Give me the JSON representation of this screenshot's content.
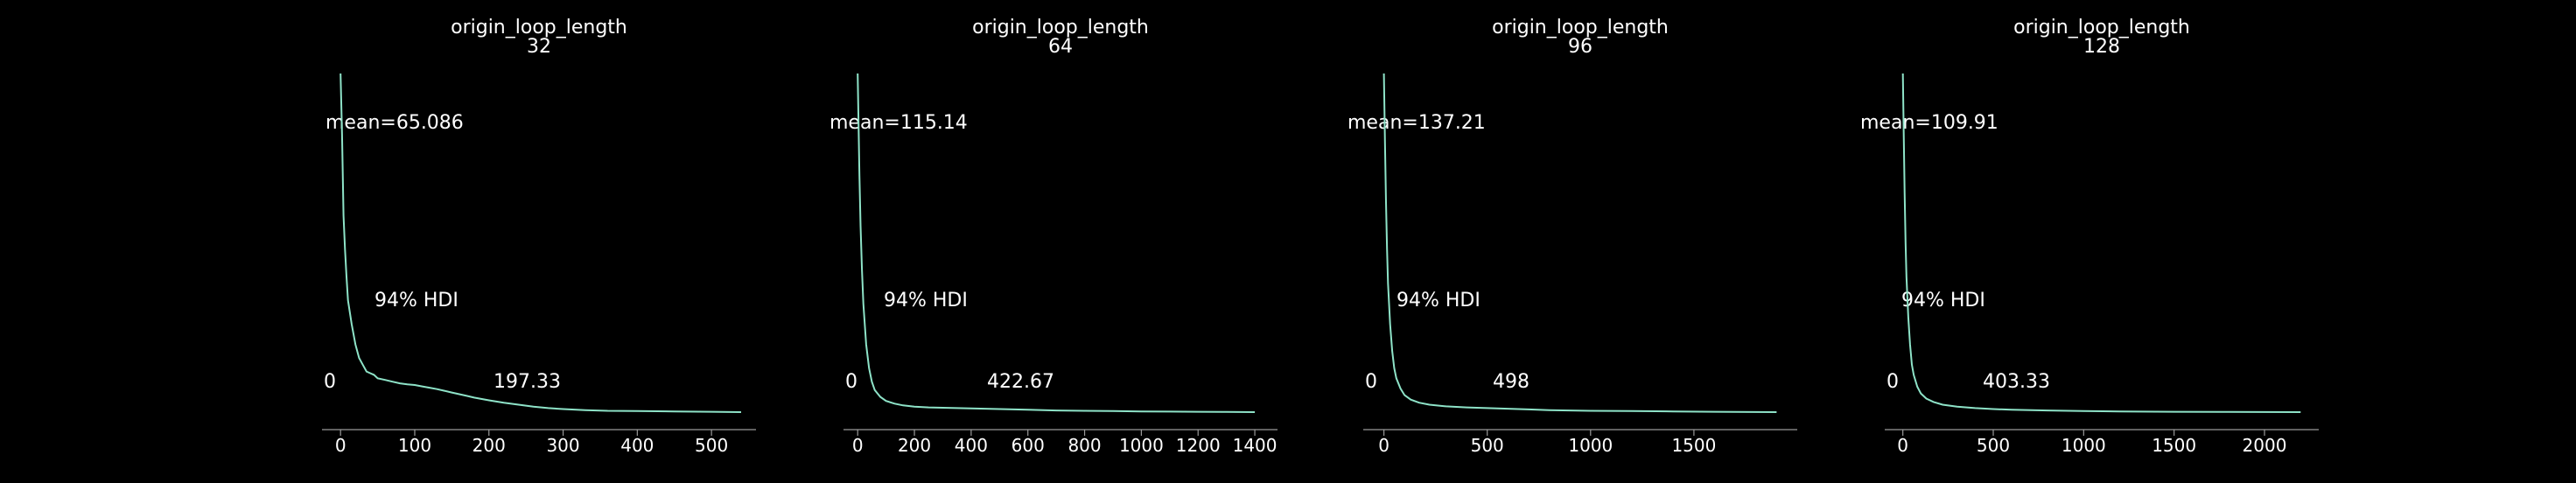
{
  "colors": {
    "background": "#000000",
    "line": "#8ee3c8",
    "axis": "#9a9a9a",
    "text": "#ffffff"
  },
  "chart_data": [
    {
      "type": "line",
      "title": "origin_loop_length",
      "subtitle": "32",
      "mean_label": "mean=65.086",
      "hdi_label": "94% HDI",
      "hdi_low_label": "0",
      "hdi_high_label": "197.33",
      "xlim": [
        -25,
        560
      ],
      "xticks": [
        0,
        100,
        200,
        300,
        400,
        500
      ],
      "x": [
        0,
        2,
        4,
        6,
        8,
        10,
        15,
        20,
        25,
        30,
        35,
        40,
        45,
        50,
        60,
        70,
        80,
        90,
        100,
        110,
        120,
        130,
        140,
        150,
        160,
        170,
        180,
        200,
        220,
        240,
        260,
        280,
        300,
        330,
        360,
        400,
        450,
        500,
        540
      ],
      "y": [
        1.0,
        0.82,
        0.58,
        0.48,
        0.4,
        0.33,
        0.26,
        0.2,
        0.16,
        0.14,
        0.12,
        0.115,
        0.11,
        0.1,
        0.095,
        0.09,
        0.085,
        0.082,
        0.08,
        0.076,
        0.072,
        0.068,
        0.063,
        0.058,
        0.053,
        0.048,
        0.043,
        0.035,
        0.028,
        0.022,
        0.016,
        0.012,
        0.009,
        0.006,
        0.004,
        0.003,
        0.002,
        0.001,
        0.0
      ]
    },
    {
      "type": "line",
      "title": "origin_loop_length",
      "subtitle": "64",
      "mean_label": "mean=115.14",
      "hdi_label": "94% HDI",
      "hdi_low_label": "0",
      "hdi_high_label": "422.67",
      "xlim": [
        -50,
        1480
      ],
      "xticks": [
        0,
        200,
        400,
        600,
        800,
        1000,
        1200,
        1400
      ],
      "x": [
        0,
        3,
        6,
        10,
        15,
        20,
        30,
        40,
        50,
        60,
        80,
        100,
        130,
        160,
        200,
        250,
        300,
        350,
        400,
        450,
        500,
        600,
        700,
        800,
        900,
        1000,
        1100,
        1200,
        1300,
        1400
      ],
      "y": [
        1.0,
        0.85,
        0.7,
        0.55,
        0.42,
        0.32,
        0.2,
        0.13,
        0.09,
        0.065,
        0.045,
        0.033,
        0.025,
        0.02,
        0.016,
        0.014,
        0.013,
        0.012,
        0.011,
        0.01,
        0.009,
        0.007,
        0.005,
        0.004,
        0.003,
        0.002,
        0.0015,
        0.001,
        0.0005,
        0.0
      ]
    },
    {
      "type": "line",
      "title": "origin_loop_length",
      "subtitle": "96",
      "mean_label": "mean=137.21",
      "hdi_label": "94% HDI",
      "hdi_low_label": "0",
      "hdi_high_label": "498",
      "xlim": [
        -100,
        2000
      ],
      "xticks": [
        0,
        500,
        1000,
        1500
      ],
      "x": [
        0,
        5,
        10,
        15,
        20,
        30,
        40,
        50,
        60,
        80,
        100,
        130,
        170,
        220,
        300,
        400,
        500,
        600,
        700,
        800,
        1000,
        1200,
        1400,
        1600,
        1900
      ],
      "y": [
        1.0,
        0.8,
        0.62,
        0.48,
        0.38,
        0.26,
        0.18,
        0.13,
        0.1,
        0.07,
        0.05,
        0.037,
        0.028,
        0.022,
        0.017,
        0.014,
        0.012,
        0.01,
        0.008,
        0.006,
        0.004,
        0.003,
        0.002,
        0.001,
        0.0
      ]
    },
    {
      "type": "line",
      "title": "origin_loop_length",
      "subtitle": "128",
      "mean_label": "mean=109.91",
      "hdi_label": "94% HDI",
      "hdi_low_label": "0",
      "hdi_high_label": "403.33",
      "xlim": [
        -100,
        2300
      ],
      "xticks": [
        0,
        500,
        1000,
        1500,
        2000
      ],
      "x": [
        0,
        5,
        10,
        15,
        20,
        30,
        40,
        50,
        60,
        80,
        100,
        130,
        170,
        220,
        300,
        400,
        500,
        600,
        800,
        1000,
        1200,
        1500,
        1800,
        2200
      ],
      "y": [
        1.0,
        0.82,
        0.65,
        0.5,
        0.4,
        0.28,
        0.2,
        0.14,
        0.11,
        0.075,
        0.055,
        0.04,
        0.03,
        0.022,
        0.016,
        0.012,
        0.009,
        0.007,
        0.005,
        0.003,
        0.002,
        0.001,
        0.0005,
        0.0
      ]
    }
  ]
}
